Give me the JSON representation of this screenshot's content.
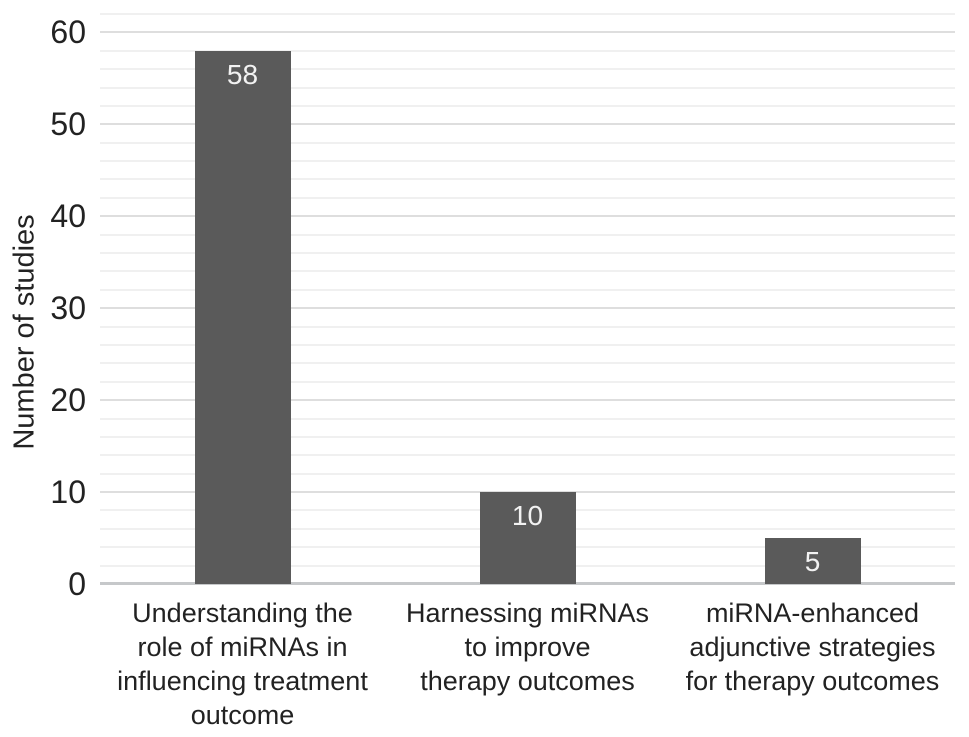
{
  "chart_data": {
    "type": "bar",
    "title": "",
    "xlabel": "",
    "ylabel": "Number of studies",
    "categories": [
      "Understanding the\nrole of miRNAs in\ninfluencing treatment\noutcome",
      "Harnessing miRNAs\nto improve\ntherapy outcomes",
      "miRNA-enhanced\nadjunctive strategies\nfor therapy outcomes"
    ],
    "values": [
      58,
      10,
      5
    ],
    "bar_labels": [
      "58",
      "10",
      "5"
    ],
    "yticks": [
      0,
      10,
      20,
      30,
      40,
      50,
      60
    ],
    "ylim": [
      0,
      62
    ],
    "minor_gridline_step": 2,
    "major_gridline_step": 10,
    "grid": "on",
    "legend": "none",
    "colors": {
      "bar": "#5a5a5a",
      "bar_label": "#f2f2f2",
      "text": "#222222",
      "minor_gridline": "#f0f0f0",
      "major_gridline": "#dedede",
      "baseline": "#c6c8ca",
      "background": "#ffffff"
    }
  }
}
